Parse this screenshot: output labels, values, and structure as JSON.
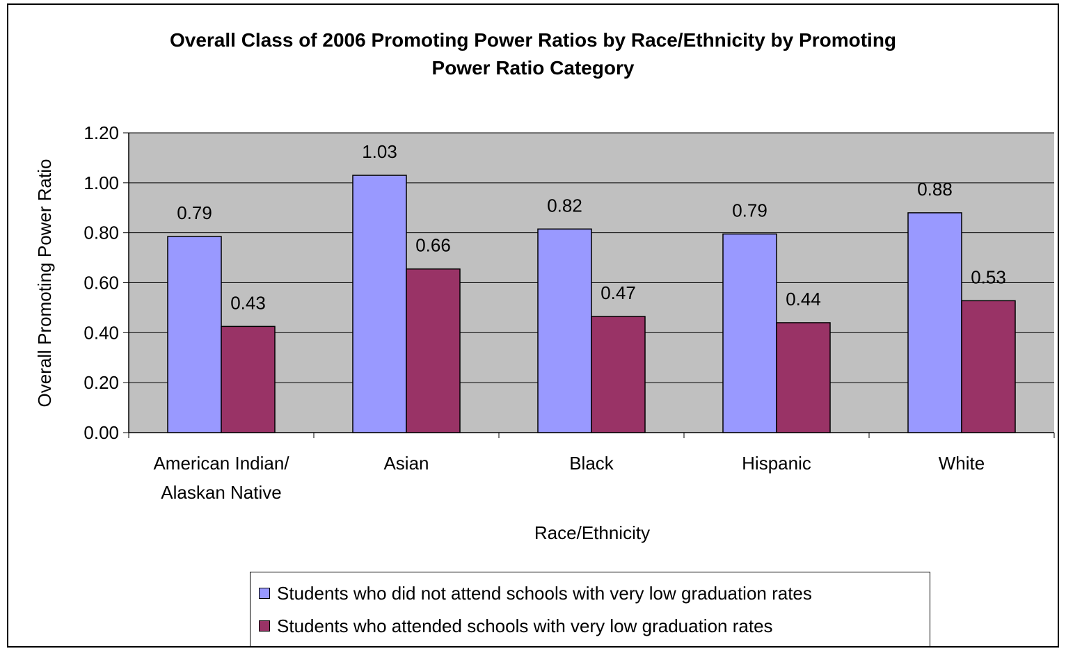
{
  "chart_data": {
    "type": "bar",
    "title_lines": [
      "Overall Class of 2006 Promoting Power Ratios by Race/Ethnicity by Promoting",
      "Power Ratio Category"
    ],
    "xlabel": "Race/Ethnicity",
    "ylabel": "Overall Promoting Power Ratio",
    "ylim": [
      0,
      1.2
    ],
    "yticks": [
      "0.00",
      "0.20",
      "0.40",
      "0.60",
      "0.80",
      "1.00",
      "1.20"
    ],
    "categories": [
      [
        "American Indian/",
        "Alaskan Native"
      ],
      [
        "Asian"
      ],
      [
        "Black"
      ],
      [
        "Hispanic"
      ],
      [
        "White"
      ]
    ],
    "series": [
      {
        "name": "Students who did not attend schools with very low graduation rates",
        "color": "#9999ff",
        "values": [
          0.785,
          1.03,
          0.815,
          0.795,
          0.88
        ],
        "labels": [
          "0.79",
          "1.03",
          "0.82",
          "0.79",
          "0.88"
        ]
      },
      {
        "name": "Students who attended schools with very low graduation rates",
        "color": "#993366",
        "values": [
          0.425,
          0.655,
          0.465,
          0.44,
          0.528
        ],
        "labels": [
          "0.43",
          "0.66",
          "0.47",
          "0.44",
          "0.53"
        ]
      }
    ],
    "plot_background": "#c0c0c0",
    "grid": true,
    "legend_position": "bottom"
  }
}
